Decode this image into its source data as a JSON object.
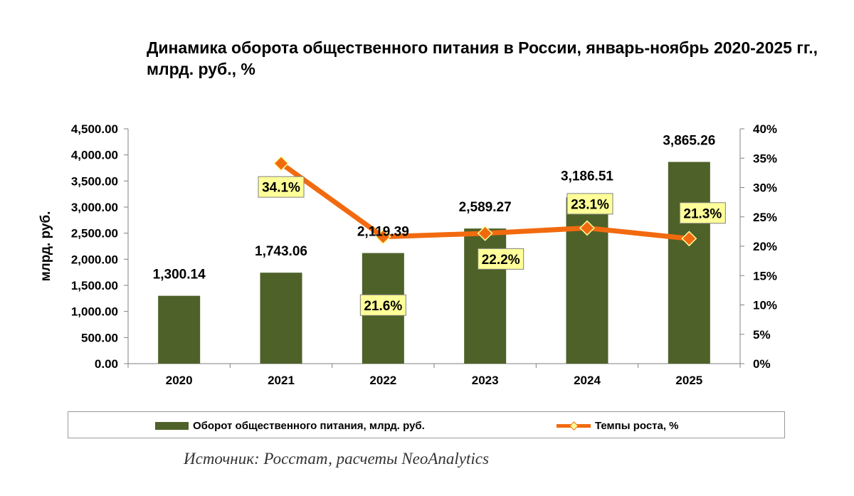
{
  "chart_data": {
    "type": "bar+line",
    "title": "Динамика оборота общественного питания в России, январь-ноябрь 2020-2025 гг., млрд. руб., %",
    "categories": [
      "2020",
      "2021",
      "2022",
      "2023",
      "2024",
      "2025"
    ],
    "series": [
      {
        "name": "Оборот общественного питания, млрд. руб.",
        "type": "bar",
        "axis": "left",
        "values": [
          1300.14,
          1743.06,
          2119.39,
          2589.27,
          3186.51,
          3865.26
        ],
        "labels": [
          "1,300.14",
          "1,743.06",
          "2,119.39",
          "2,589.27",
          "3,186.51",
          "3,865.26"
        ],
        "color": "#4e6128"
      },
      {
        "name": "Темпы роста, %",
        "type": "line",
        "axis": "right",
        "values": [
          null,
          34.1,
          21.6,
          22.2,
          23.1,
          21.3
        ],
        "labels": [
          "",
          "34.1%",
          "21.6%",
          "22.2%",
          "23.1%",
          "21.3%"
        ],
        "color": "#f26a0f",
        "marker_color": "#ffff99"
      }
    ],
    "ylabel": "млрд. руб.",
    "ylim": [
      0,
      4500
    ],
    "yticks": [
      "0.00",
      "500.00",
      "1,000.00",
      "1,500.00",
      "2,000.00",
      "2,500.00",
      "3,000.00",
      "3,500.00",
      "4,000.00",
      "4,500.00"
    ],
    "y2lim": [
      0,
      40
    ],
    "y2ticks": [
      "0%",
      "5%",
      "10%",
      "15%",
      "20%",
      "25%",
      "30%",
      "35%",
      "40%"
    ],
    "legend_position": "bottom",
    "source": "Источник: Росстат, расчеты NeoAnalytics"
  }
}
